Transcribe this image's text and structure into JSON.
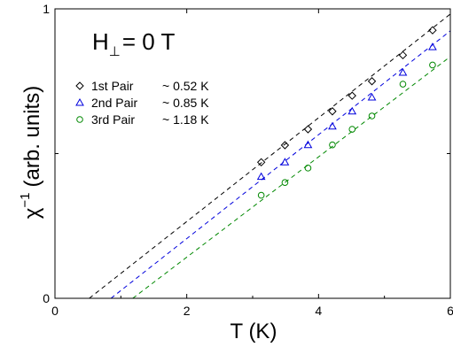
{
  "chart_data": {
    "type": "scatter",
    "title": "",
    "xlabel": "T (K)",
    "ylabel": "χ⁻¹ (arb. units)",
    "ylabel_parts": {
      "symbol": "χ",
      "superscript": "−1",
      "text": "(arb. units)"
    },
    "xlim": [
      0,
      6
    ],
    "ylim": [
      0,
      1
    ],
    "x_ticks": [
      0,
      2,
      4,
      6
    ],
    "x_tick_labels": [
      "0",
      "2",
      "4",
      "6"
    ],
    "y_ticks": [
      0,
      1
    ],
    "y_tick_labels": [
      "0",
      "1"
    ],
    "grid": false,
    "annotation": {
      "main": "H",
      "sub": "⊥",
      "rest": "= 0 T"
    },
    "legend_position": "top-left",
    "series": [
      {
        "name": "1st Pair",
        "legend_value": "~ 0.52 K",
        "marker": "diamond",
        "color": "#000000",
        "x": [
          3.13,
          3.49,
          3.84,
          4.21,
          4.51,
          4.81,
          5.28,
          5.73
        ],
        "y": [
          0.47,
          0.529,
          0.584,
          0.646,
          0.7,
          0.75,
          0.84,
          0.926
        ],
        "fit": {
          "x": [
            0.52,
            6.0
          ],
          "y": [
            0.0,
            0.982
          ]
        }
      },
      {
        "name": "2nd Pair",
        "legend_value": "~ 0.85 K",
        "marker": "triangle",
        "color": "#0000dd",
        "x": [
          3.13,
          3.49,
          3.84,
          4.21,
          4.51,
          4.81,
          5.28,
          5.73
        ],
        "y": [
          0.42,
          0.47,
          0.53,
          0.594,
          0.646,
          0.694,
          0.78,
          0.868
        ],
        "fit": {
          "x": [
            0.85,
            6.0
          ],
          "y": [
            0.0,
            0.924
          ]
        }
      },
      {
        "name": "3rd Pair",
        "legend_value": "~ 1.18 K",
        "marker": "circle",
        "color": "#008800",
        "x": [
          3.13,
          3.49,
          3.84,
          4.21,
          4.51,
          4.81,
          5.28,
          5.73
        ],
        "y": [
          0.356,
          0.4,
          0.45,
          0.53,
          0.584,
          0.63,
          0.74,
          0.806
        ],
        "fit": {
          "x": [
            1.18,
            6.0
          ],
          "y": [
            0.0,
            0.835
          ]
        }
      }
    ]
  }
}
